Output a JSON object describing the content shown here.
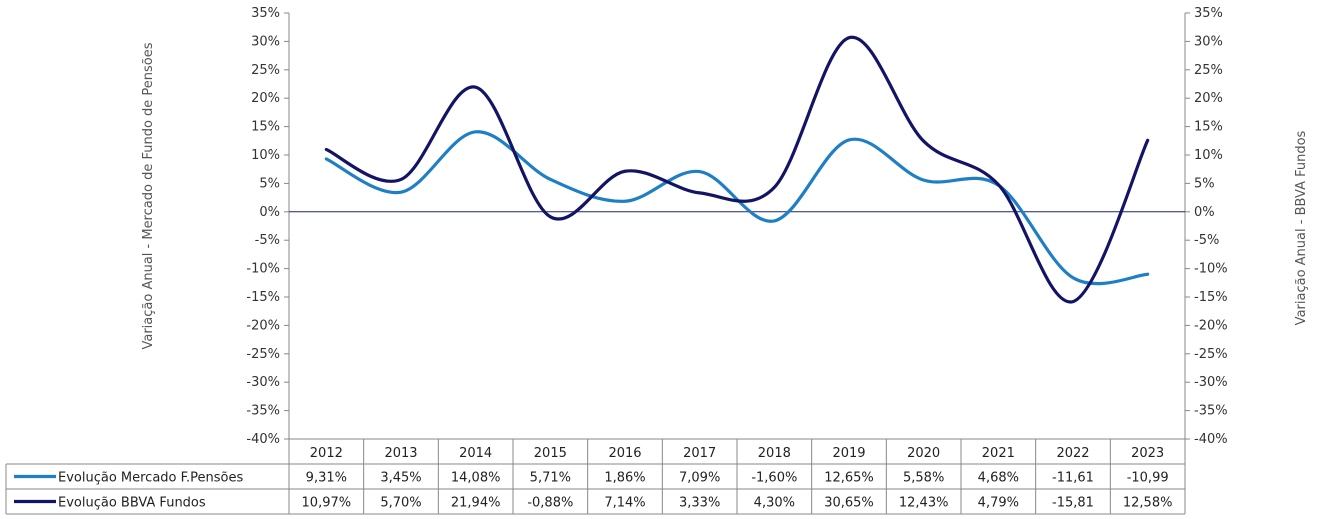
{
  "chart_data": {
    "type": "line",
    "x": [
      "2012",
      "2013",
      "2014",
      "2015",
      "2016",
      "2017",
      "2018",
      "2019",
      "2020",
      "2021",
      "2022",
      "2023"
    ],
    "ylabel_left": "Variação Anual - Mercado de Fundo de Pensões",
    "ylabel_right": "Variação Anual - BBVA Fundos",
    "ylim": [
      -40,
      35
    ],
    "yticks": [
      "35%",
      "30%",
      "25%",
      "20%",
      "15%",
      "10%",
      "5%",
      "0%",
      "-5%",
      "-10%",
      "-15%",
      "-20%",
      "-25%",
      "-30%",
      "-35%",
      "-40%"
    ],
    "ytick_values": [
      35,
      30,
      25,
      20,
      15,
      10,
      5,
      0,
      -5,
      -10,
      -15,
      -20,
      -25,
      -30,
      -35,
      -40
    ],
    "smooth": true,
    "zero_line": true,
    "series": [
      {
        "name": "Evolução Mercado F.Pensões",
        "color": "#1f7fc4",
        "values": [
          9.31,
          3.45,
          14.08,
          5.71,
          1.86,
          7.09,
          -1.6,
          12.65,
          5.58,
          4.68,
          -11.61,
          -10.99
        ],
        "labels": [
          "9,31%",
          "3,45%",
          "14,08%",
          "5,71%",
          "1,86%",
          "7,09%",
          "-1,60%",
          "12,65%",
          "5,58%",
          "4,68%",
          "-11,61",
          "-10,99"
        ]
      },
      {
        "name": "Evolução BBVA Fundos",
        "color": "#141466",
        "values": [
          10.97,
          5.7,
          21.94,
          -0.88,
          7.14,
          3.33,
          4.3,
          30.65,
          12.43,
          4.79,
          -15.81,
          12.58
        ],
        "labels": [
          "10,97%",
          "5,70%",
          "21,94%",
          "-0,88%",
          "7,14%",
          "3,33%",
          "4,30%",
          "30,65%",
          "12,43%",
          "4,79%",
          "-15,81",
          "12,58%"
        ]
      }
    ]
  }
}
